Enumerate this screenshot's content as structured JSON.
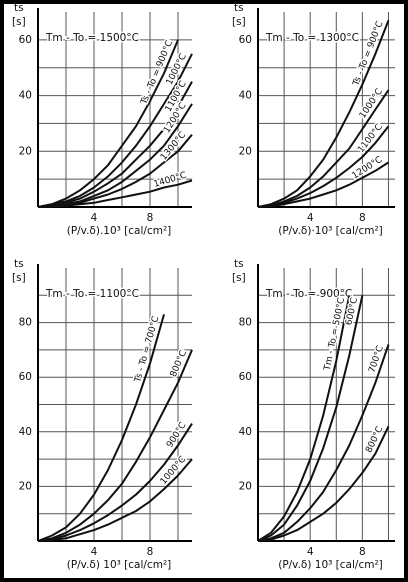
{
  "chart_data": [
    {
      "type": "line",
      "title": "Tm - To = 1500°C",
      "y_label": "ts",
      "y_unit": "[s]",
      "x_label": "(P/v.δ).10³ [cal/cm²]",
      "x": [
        0,
        1,
        2,
        3,
        4,
        5,
        6,
        7,
        8,
        9,
        10,
        11
      ],
      "xlim": [
        0,
        11
      ],
      "ylim": [
        0,
        70
      ],
      "xticks": [
        4,
        8
      ],
      "yticks": [
        20,
        40,
        60
      ],
      "minor_xticks": [
        2,
        6,
        10
      ],
      "minor_yticks": [
        10,
        30,
        50
      ],
      "grid": true,
      "color": "#111111",
      "series": [
        {
          "name": "Ts - To = 900°C",
          "values": [
            0,
            1,
            3,
            6,
            10,
            15,
            22,
            29,
            38,
            48,
            60,
            null
          ]
        },
        {
          "name": "1000°C",
          "values": [
            0,
            1,
            2,
            4,
            7,
            11,
            16,
            22,
            29,
            37,
            45,
            55
          ]
        },
        {
          "name": "1100°C",
          "values": [
            0,
            0.5,
            1.5,
            3,
            5.5,
            8.5,
            12,
            17,
            22,
            28,
            36,
            45
          ]
        },
        {
          "name": "1200°C",
          "values": [
            0,
            0.5,
            1,
            2,
            4,
            6,
            9,
            13,
            17,
            22,
            29,
            37
          ]
        },
        {
          "name": "1300°C",
          "values": [
            0,
            0.3,
            0.8,
            1.5,
            3,
            4.5,
            6.5,
            9,
            12,
            16,
            20,
            26
          ]
        },
        {
          "name": "1400°C",
          "values": [
            0,
            0.2,
            0.5,
            1,
            1.5,
            2.5,
            3.5,
            4.5,
            5.5,
            7,
            8,
            9.5
          ]
        }
      ]
    },
    {
      "type": "line",
      "title": "Tm - To = 1300°C",
      "y_label": "ts",
      "y_unit": "[s]",
      "x_label": "(P/v.δ)·10³ [cal/cm²]",
      "x": [
        0,
        1,
        2,
        3,
        4,
        5,
        6,
        7,
        8,
        9,
        10
      ],
      "xlim": [
        0,
        10.5
      ],
      "ylim": [
        0,
        70
      ],
      "xticks": [
        4,
        8
      ],
      "yticks": [
        20,
        40,
        60
      ],
      "minor_xticks": [
        2,
        6,
        10
      ],
      "minor_yticks": [
        10,
        30,
        50
      ],
      "grid": true,
      "color": "#111111",
      "series": [
        {
          "name": "Ts - To = 900°C",
          "values": [
            0,
            1,
            3,
            6,
            11,
            17,
            25,
            34,
            44,
            55,
            67
          ]
        },
        {
          "name": "1000°C",
          "values": [
            0,
            0.5,
            2,
            4,
            7,
            11,
            16,
            21,
            28,
            35,
            42
          ]
        },
        {
          "name": "1100°C",
          "values": [
            0,
            0.4,
            1.5,
            3,
            5,
            7.5,
            10.5,
            14,
            18,
            23,
            29
          ]
        },
        {
          "name": "1200°C",
          "values": [
            0,
            0.3,
            1,
            2,
            3,
            4.5,
            6,
            8,
            10.5,
            13,
            16
          ]
        }
      ]
    },
    {
      "type": "line",
      "title": "Tm - To = 1100°C",
      "y_label": "ts",
      "y_unit": "[s]",
      "x_label": "(P/v.δ) 10³ [cal/cm²]",
      "x": [
        0,
        1,
        2,
        3,
        4,
        5,
        6,
        7,
        8,
        9,
        10,
        11
      ],
      "xlim": [
        0,
        11
      ],
      "ylim": [
        0,
        100
      ],
      "xticks": [
        4,
        8
      ],
      "yticks": [
        20,
        40,
        60,
        80
      ],
      "minor_xticks": [
        2,
        6,
        10
      ],
      "minor_yticks": [
        10,
        30,
        50,
        70,
        90
      ],
      "grid": true,
      "color": "#111111",
      "series": [
        {
          "name": "Ts - To = 700°C",
          "values": [
            0,
            2,
            5,
            10,
            17,
            26,
            37,
            50,
            65,
            83,
            null,
            null
          ]
        },
        {
          "name": "800°C",
          "values": [
            0,
            1,
            3,
            6,
            10,
            15,
            21,
            29,
            38,
            48,
            58,
            70
          ]
        },
        {
          "name": "900°C",
          "values": [
            0,
            0.5,
            2,
            4,
            6.5,
            9.5,
            13,
            17,
            22,
            28,
            35,
            43
          ]
        },
        {
          "name": "1000°C",
          "values": [
            0,
            0.3,
            1,
            2.5,
            4,
            6,
            8.5,
            11,
            14.5,
            19,
            24,
            30
          ]
        }
      ]
    },
    {
      "type": "line",
      "title": "Tm - To = 900°C",
      "y_label": "ts",
      "y_unit": "[s]",
      "x_label": "(P/v.δ) 10³ [cal/cm²]",
      "x": [
        0,
        1,
        2,
        3,
        4,
        5,
        6,
        7,
        8,
        9,
        10
      ],
      "xlim": [
        0,
        10.5
      ],
      "ylim": [
        0,
        100
      ],
      "xticks": [
        4,
        8
      ],
      "yticks": [
        20,
        40,
        60,
        80
      ],
      "minor_xticks": [
        2,
        6,
        10
      ],
      "minor_yticks": [
        10,
        30,
        50,
        70,
        90
      ],
      "grid": true,
      "color": "#111111",
      "series": [
        {
          "name": "Tm - To = 500°C",
          "values": [
            0,
            3,
            9,
            18,
            30,
            46,
            66,
            90,
            null,
            null,
            null
          ]
        },
        {
          "name": "600°C",
          "values": [
            0,
            2,
            6,
            13,
            22,
            34,
            49,
            68,
            90,
            null,
            null
          ]
        },
        {
          "name": "700°C",
          "values": [
            0,
            1,
            3,
            7,
            12,
            18,
            26,
            35,
            46,
            58,
            72
          ]
        },
        {
          "name": "800°C",
          "values": [
            0,
            0.5,
            2,
            4,
            7,
            10,
            14,
            19,
            25,
            32,
            42
          ]
        }
      ]
    }
  ]
}
